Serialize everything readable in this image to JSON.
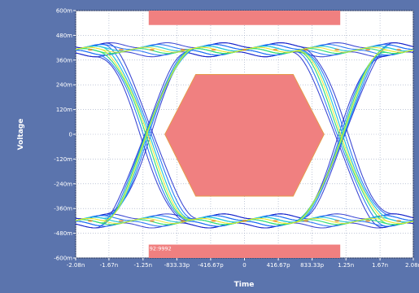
{
  "chart_data": {
    "type": "scatter",
    "subtype": "eye-diagram",
    "title": "",
    "xlabel": "Time",
    "ylabel": "Voltage",
    "xlim": [
      -2.08,
      2.08
    ],
    "ylim": [
      -600,
      600
    ],
    "x_unit": "ns",
    "y_unit": "mV",
    "grid": "dotted",
    "x_ticks": [
      {
        "value": -2.08,
        "label": "-2.08n"
      },
      {
        "value": -1.67,
        "label": "-1.67n"
      },
      {
        "value": -1.25,
        "label": "-1.25n"
      },
      {
        "value": -0.83333,
        "label": "-833.33p"
      },
      {
        "value": -0.41667,
        "label": "-416.67p"
      },
      {
        "value": 0,
        "label": "0"
      },
      {
        "value": 0.41667,
        "label": "416.67p"
      },
      {
        "value": 0.83333,
        "label": "833.33p"
      },
      {
        "value": 1.25,
        "label": "1.25n"
      },
      {
        "value": 1.67,
        "label": "1.67n"
      },
      {
        "value": 2.08,
        "label": "2.08n"
      }
    ],
    "y_ticks": [
      {
        "value": 600,
        "label": "600m"
      },
      {
        "value": 480,
        "label": "480m"
      },
      {
        "value": 360,
        "label": "360m"
      },
      {
        "value": 240,
        "label": "240m"
      },
      {
        "value": 120,
        "label": "120m"
      },
      {
        "value": 0,
        "label": "0"
      },
      {
        "value": -120,
        "label": "-120m"
      },
      {
        "value": -240,
        "label": "-240m"
      },
      {
        "value": -360,
        "label": "-360m"
      },
      {
        "value": -480,
        "label": "-480m"
      },
      {
        "value": -600,
        "label": "-600m"
      }
    ],
    "signal": {
      "high_level": 410,
      "low_level": -420,
      "crossings": [
        -1.2,
        1.2
      ],
      "rise_time": 1.15
    },
    "mask": {
      "color": "#f08080",
      "center": [
        {
          "x": -0.98,
          "y": 0
        },
        {
          "x": -0.6,
          "y": 290
        },
        {
          "x": 0.6,
          "y": 290
        },
        {
          "x": 0.98,
          "y": 0
        },
        {
          "x": 0.6,
          "y": -300
        },
        {
          "x": -0.6,
          "y": -300
        }
      ],
      "top_band": {
        "x_range": [
          -1.18,
          1.18
        ],
        "y_range": [
          530,
          600
        ]
      },
      "bottom_band": {
        "x_range": [
          -1.18,
          1.18
        ],
        "y_range": [
          -600,
          -535
        ]
      },
      "label": "92:9992"
    },
    "density_colors": [
      "#0a18c8",
      "#1a6ef5",
      "#27c7d8",
      "#36e07a",
      "#e8e82a",
      "#f07a1a"
    ]
  }
}
